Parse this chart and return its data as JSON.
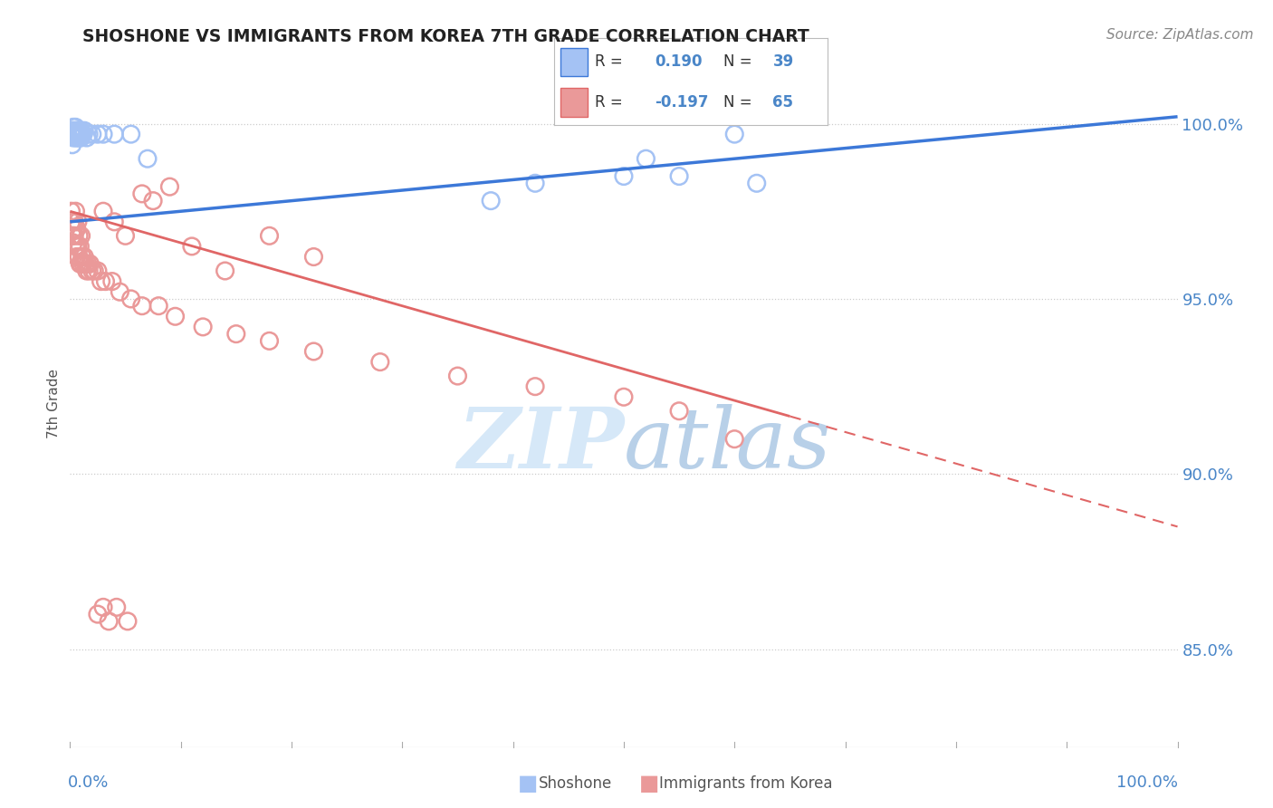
{
  "title": "SHOSHONE VS IMMIGRANTS FROM KOREA 7TH GRADE CORRELATION CHART",
  "source": "Source: ZipAtlas.com",
  "ylabel": "7th Grade",
  "ytick_labels": [
    "85.0%",
    "90.0%",
    "95.0%",
    "100.0%"
  ],
  "ytick_values": [
    0.85,
    0.9,
    0.95,
    1.0
  ],
  "ylim": [
    0.822,
    1.018
  ],
  "R_blue": 0.19,
  "N_blue": 39,
  "R_pink": -0.197,
  "N_pink": 65,
  "blue_scatter_color": "#a4c2f4",
  "pink_scatter_color": "#ea9999",
  "blue_line_color": "#3c78d8",
  "pink_line_color": "#e06666",
  "watermark_color": "#d6e8f8",
  "shoshone_x": [
    0.001,
    0.002,
    0.002,
    0.003,
    0.003,
    0.003,
    0.004,
    0.004,
    0.005,
    0.005,
    0.005,
    0.006,
    0.006,
    0.007,
    0.007,
    0.008,
    0.008,
    0.009,
    0.009,
    0.01,
    0.01,
    0.011,
    0.012,
    0.013,
    0.015,
    0.017,
    0.02,
    0.025,
    0.03,
    0.04,
    0.055,
    0.07,
    0.38,
    0.42,
    0.5,
    0.52,
    0.55,
    0.6,
    0.62
  ],
  "shoshone_y": [
    0.997,
    0.998,
    0.994,
    0.997,
    0.996,
    0.999,
    0.997,
    0.998,
    0.996,
    0.999,
    0.997,
    0.998,
    0.997,
    0.996,
    0.998,
    0.997,
    0.996,
    0.998,
    0.997,
    0.996,
    0.998,
    0.997,
    0.997,
    0.998,
    0.996,
    0.997,
    0.997,
    0.997,
    0.997,
    0.997,
    0.997,
    0.99,
    0.978,
    0.983,
    0.985,
    0.99,
    0.985,
    0.997,
    0.983
  ],
  "korea_x": [
    0.001,
    0.001,
    0.002,
    0.002,
    0.003,
    0.003,
    0.004,
    0.004,
    0.005,
    0.005,
    0.005,
    0.006,
    0.006,
    0.007,
    0.007,
    0.008,
    0.008,
    0.009,
    0.009,
    0.01,
    0.01,
    0.011,
    0.012,
    0.013,
    0.014,
    0.015,
    0.016,
    0.017,
    0.018,
    0.02,
    0.022,
    0.025,
    0.028,
    0.032,
    0.038,
    0.045,
    0.055,
    0.065,
    0.08,
    0.095,
    0.12,
    0.15,
    0.18,
    0.22,
    0.28,
    0.35,
    0.42,
    0.5,
    0.55,
    0.6,
    0.065,
    0.075,
    0.09,
    0.11,
    0.14,
    0.03,
    0.04,
    0.05,
    0.18,
    0.22,
    0.025,
    0.03,
    0.035,
    0.042,
    0.052
  ],
  "korea_y": [
    0.975,
    0.972,
    0.972,
    0.968,
    0.97,
    0.966,
    0.968,
    0.972,
    0.965,
    0.97,
    0.975,
    0.962,
    0.97,
    0.965,
    0.972,
    0.962,
    0.968,
    0.96,
    0.965,
    0.96,
    0.968,
    0.962,
    0.96,
    0.962,
    0.96,
    0.958,
    0.96,
    0.958,
    0.96,
    0.958,
    0.958,
    0.958,
    0.955,
    0.955,
    0.955,
    0.952,
    0.95,
    0.948,
    0.948,
    0.945,
    0.942,
    0.94,
    0.938,
    0.935,
    0.932,
    0.928,
    0.925,
    0.922,
    0.918,
    0.91,
    0.98,
    0.978,
    0.982,
    0.965,
    0.958,
    0.975,
    0.972,
    0.968,
    0.968,
    0.962,
    0.86,
    0.862,
    0.858,
    0.862,
    0.858
  ]
}
